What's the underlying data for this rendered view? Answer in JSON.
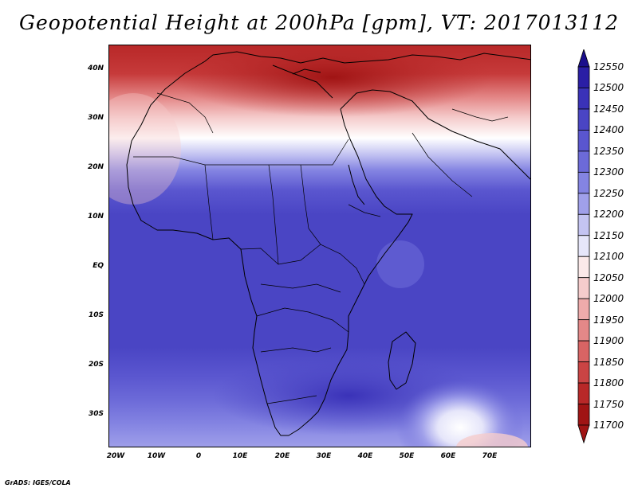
{
  "title": "Geopotential Height at 200hPa [gpm], VT: 2017013112",
  "credit": "GrADS: IGES/COLA",
  "latitude_labels": [
    "40N",
    "30N",
    "20N",
    "10N",
    "EQ",
    "10S",
    "20S",
    "30S"
  ],
  "longitude_labels": [
    "20W",
    "10W",
    "0",
    "10E",
    "20E",
    "30E",
    "40E",
    "50E",
    "60E",
    "70E"
  ],
  "colorbar": {
    "levels": [
      "12550",
      "12500",
      "12450",
      "12400",
      "12350",
      "12300",
      "12250",
      "12200",
      "12150",
      "12100",
      "12050",
      "12000",
      "11950",
      "11900",
      "11850",
      "11800",
      "11750",
      "11700"
    ],
    "colors": [
      "#1b0f8c",
      "#2a1ea5",
      "#3a32b8",
      "#4a45c4",
      "#5a56cf",
      "#6c6ad8",
      "#8484e2",
      "#a0a0ea",
      "#c4c4f2",
      "#e6e6fa",
      "#fbe9e9",
      "#f5cccc",
      "#eeabab",
      "#e48888",
      "#d86464",
      "#ca4444",
      "#b82828",
      "#a01414"
    ]
  }
}
